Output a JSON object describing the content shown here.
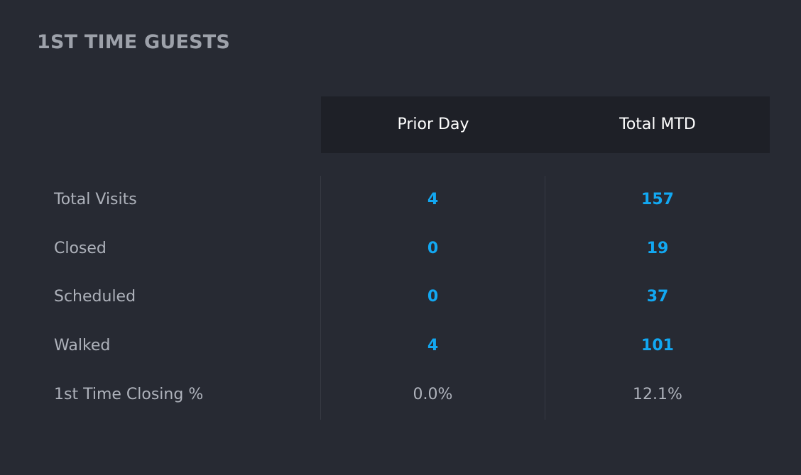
{
  "card": {
    "title": "1ST TIME GUESTS"
  },
  "table": {
    "columns": [
      "Prior Day",
      "Total MTD"
    ],
    "rows": [
      {
        "label": "Total Visits",
        "prior_day": "4",
        "total_mtd": "157"
      },
      {
        "label": "Closed",
        "prior_day": "0",
        "total_mtd": "19"
      },
      {
        "label": "Scheduled",
        "prior_day": "0",
        "total_mtd": "37"
      },
      {
        "label": "Walked",
        "prior_day": "4",
        "total_mtd": "101"
      },
      {
        "label": "1st Time Closing %",
        "prior_day": "0.0%",
        "total_mtd": "12.1%"
      }
    ]
  },
  "colors": {
    "background": "#272a33",
    "header_background": "#1e2027",
    "link_value": "#12a8f2",
    "label_text": "#aeb2bb",
    "title_text": "#9da1aa"
  }
}
